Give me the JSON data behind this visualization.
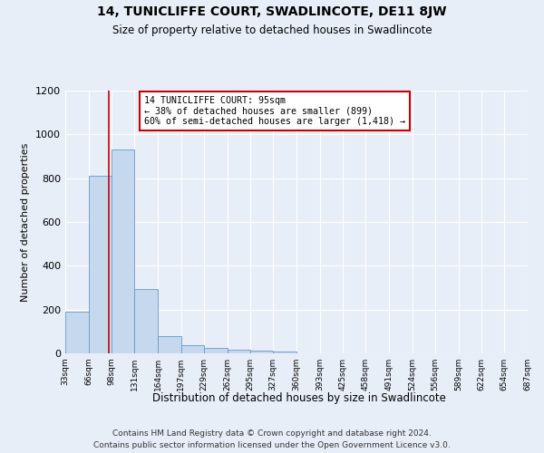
{
  "title": "14, TUNICLIFFE COURT, SWADLINCOTE, DE11 8JW",
  "subtitle": "Size of property relative to detached houses in Swadlincote",
  "xlabel": "Distribution of detached houses by size in Swadlincote",
  "ylabel": "Number of detached properties",
  "footnote1": "Contains HM Land Registry data © Crown copyright and database right 2024.",
  "footnote2": "Contains public sector information licensed under the Open Government Licence v3.0.",
  "annotation_line1": "14 TUNICLIFFE COURT: 95sqm",
  "annotation_line2": "← 38% of detached houses are smaller (899)",
  "annotation_line3": "60% of semi-detached houses are larger (1,418) →",
  "bar_color": "#c5d8ee",
  "bar_edge_color": "#6699cc",
  "marker_line_color": "#cc0000",
  "background_color": "#e8eef8",
  "grid_color": "#ffffff",
  "bin_edges": [
    33,
    66,
    98,
    131,
    164,
    197,
    229,
    262,
    295,
    327,
    360,
    393,
    425,
    458,
    491,
    524,
    556,
    589,
    622,
    654,
    687
  ],
  "bin_labels": [
    "33sqm",
    "66sqm",
    "98sqm",
    "131sqm",
    "164sqm",
    "197sqm",
    "229sqm",
    "262sqm",
    "295sqm",
    "327sqm",
    "360sqm",
    "393sqm",
    "425sqm",
    "458sqm",
    "491sqm",
    "524sqm",
    "556sqm",
    "589sqm",
    "622sqm",
    "654sqm",
    "687sqm"
  ],
  "bar_heights": [
    190,
    810,
    930,
    295,
    80,
    38,
    25,
    17,
    12,
    10,
    0,
    0,
    0,
    0,
    0,
    0,
    0,
    0,
    0,
    0
  ],
  "property_size": 95,
  "ylim": [
    0,
    1200
  ],
  "yticks": [
    0,
    200,
    400,
    600,
    800,
    1000,
    1200
  ]
}
